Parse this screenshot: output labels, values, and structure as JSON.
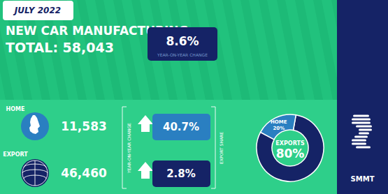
{
  "chart_data": {
    "type": "pie",
    "title": "NEW CAR MANUFACTURING",
    "subtitle": "JULY 2022",
    "categories": [
      "EXPORTS",
      "HOME"
    ],
    "values": [
      80,
      20
    ],
    "value_labels": [
      "80%",
      "20%"
    ],
    "colors": [
      "#152366",
      "#2a7fc1"
    ],
    "annotations": [
      "TOTAL: 58,043",
      "8.6%",
      "YEAR-ON-YEAR CHANGE",
      "HOME",
      "11,583",
      "40.7%",
      "EXPORT",
      "46,460",
      "2.8%",
      "YEAR-ON-YEAR CHANGE",
      "EXPORT SHARE",
      "SMMT"
    ]
  }
}
